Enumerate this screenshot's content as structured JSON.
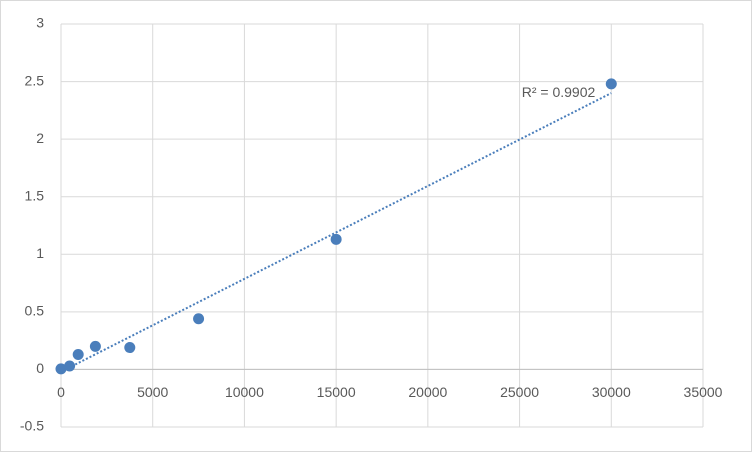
{
  "chart_data": {
    "type": "scatter",
    "series": [
      {
        "mode": "markers",
        "color": "#4a7ebb",
        "x": [
          0,
          468.75,
          937.5,
          1875,
          3750,
          7500,
          15000,
          30000
        ],
        "values": [
          0.005,
          0.03,
          0.13,
          0.2,
          0.19,
          0.44,
          1.13,
          2.48
        ]
      },
      {
        "mode": "trendline",
        "color": "#4a7ebb",
        "line_style": "dotted",
        "x": [
          0,
          30000
        ],
        "values": [
          -0.02,
          2.4
        ]
      }
    ],
    "annotation": "R² = 0.9902",
    "xlim": [
      0,
      35000
    ],
    "xticks": [
      0,
      5000,
      10000,
      15000,
      20000,
      25000,
      30000,
      35000
    ],
    "ylim": [
      -0.5,
      3
    ],
    "yticks": [
      -0.5,
      0,
      0.5,
      1,
      1.5,
      2,
      2.5,
      3
    ],
    "grid": true
  }
}
